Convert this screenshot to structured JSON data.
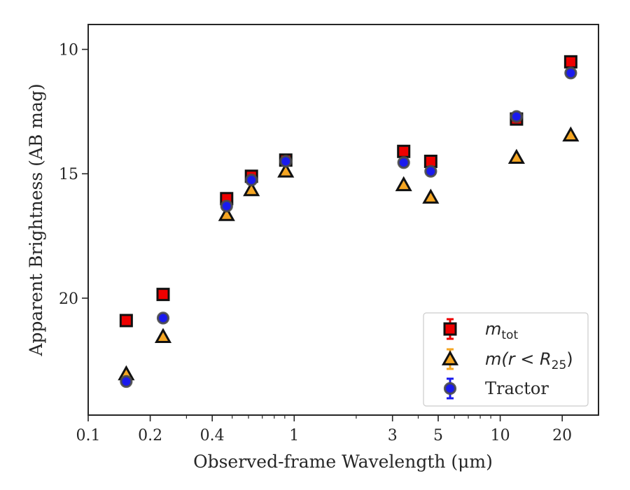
{
  "chart_data": {
    "type": "scatter",
    "xlabel": "Observed-frame Wavelength (μm)",
    "ylabel": "Apparent Brightness (AB mag)",
    "x_scale": "log",
    "xlim": [
      0.1,
      30
    ],
    "ylim": [
      24.7,
      9.0
    ],
    "y_inverted": true,
    "x_ticks": [
      0.1,
      0.2,
      0.4,
      1,
      3,
      5,
      10,
      20
    ],
    "x_tick_labels": [
      "0.1",
      "0.2",
      "0.4",
      "1",
      "3",
      "5",
      "10",
      "20"
    ],
    "y_ticks": [
      10,
      15,
      20
    ],
    "y_tick_labels": [
      "10",
      "15",
      "20"
    ],
    "legend_position": "lower-right",
    "series": [
      {
        "name": "m_tot",
        "legend_label": {
          "main": "m",
          "sub": "tot"
        },
        "marker": "square",
        "color": "#ee0000",
        "x": [
          0.153,
          0.231,
          0.47,
          0.62,
          0.91,
          3.4,
          4.6,
          12,
          22
        ],
        "y": [
          20.9,
          19.85,
          16.0,
          15.1,
          14.45,
          14.1,
          14.5,
          12.8,
          10.5
        ]
      },
      {
        "name": "m(r < R25)",
        "legend_label": {
          "main": "m(r < R",
          "sub": "25",
          "tail": ")"
        },
        "marker": "triangle",
        "color": "#f5a623",
        "x": [
          0.153,
          0.231,
          0.47,
          0.62,
          0.91,
          3.4,
          4.6,
          12,
          22
        ],
        "y": [
          23.05,
          21.55,
          16.65,
          15.65,
          14.9,
          15.45,
          15.95,
          14.35,
          13.45
        ]
      },
      {
        "name": "Tractor",
        "legend_label": {
          "main": "Tractor"
        },
        "marker": "circle",
        "color": "#1a1aee",
        "x": [
          0.153,
          0.231,
          0.47,
          0.62,
          0.91,
          3.4,
          4.6,
          12,
          22
        ],
        "y": [
          23.35,
          20.8,
          16.3,
          15.25,
          14.5,
          14.55,
          14.9,
          12.7,
          10.95
        ]
      }
    ]
  }
}
